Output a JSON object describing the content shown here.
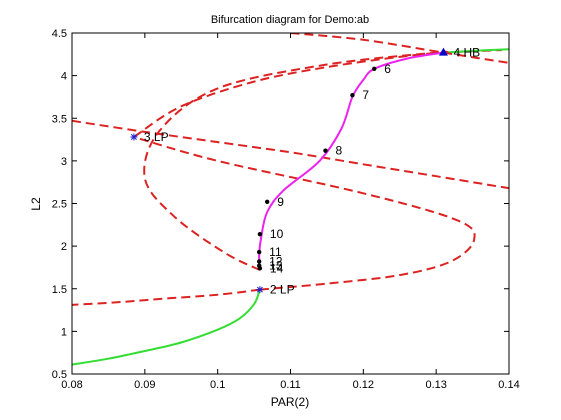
{
  "chart_data": {
    "type": "line",
    "title": "Bifurcation diagram for Demo:ab",
    "xlabel": "PAR(2)",
    "ylabel": "L2",
    "xlim": [
      0.08,
      0.14
    ],
    "ylim": [
      0.5,
      4.5
    ],
    "xticks": [
      "0.08",
      "0.09",
      "0.1",
      "0.11",
      "0.12",
      "0.13",
      "0.14"
    ],
    "yticks": [
      "0.5",
      "1",
      "1.5",
      "2",
      "2.5",
      "3",
      "3.5",
      "4",
      "4.5"
    ],
    "grid": false,
    "legend": "none",
    "colors": {
      "stable": "#33dd33",
      "unstable": "#dd2222",
      "periodic": "#ee22ee",
      "hb": "#0000cc",
      "lp": "#2222cc",
      "dot": "#000000"
    },
    "series": [
      {
        "style": "stable",
        "x": [
          0.08,
          0.085,
          0.09,
          0.095,
          0.1,
          0.103,
          0.105,
          0.1058
        ],
        "y": [
          0.61,
          0.68,
          0.77,
          0.87,
          1.02,
          1.15,
          1.32,
          1.49
        ]
      },
      {
        "style": "unstable",
        "x": [
          0.1058,
          0.115,
          0.125,
          0.132,
          0.1352,
          0.133,
          0.12,
          0.1,
          0.0885
        ],
        "y": [
          1.49,
          1.56,
          1.66,
          1.82,
          2.07,
          2.3,
          2.62,
          3.0,
          3.28
        ]
      },
      {
        "style": "unstable",
        "x": [
          0.0885,
          0.095,
          0.105,
          0.115,
          0.125,
          0.131,
          0.139
        ],
        "y": [
          3.28,
          3.64,
          3.93,
          4.1,
          4.22,
          4.27,
          4.3
        ]
      },
      {
        "style": "stable",
        "x": [
          0.131,
          0.135,
          0.14
        ],
        "y": [
          4.27,
          4.29,
          4.31
        ]
      },
      {
        "style": "unstable",
        "x": [
          0.1058,
          0.1,
          0.092,
          0.086,
          0.08
        ],
        "y": [
          1.49,
          1.43,
          1.38,
          1.34,
          1.31
        ]
      },
      {
        "style": "unstable",
        "x": [
          0.1058,
          0.101,
          0.094,
          0.09,
          0.092,
          0.1,
          0.115,
          0.13,
          0.131
        ],
        "y": [
          1.72,
          1.92,
          2.35,
          2.8,
          3.35,
          3.85,
          4.13,
          4.27,
          4.27
        ]
      },
      {
        "style": "unstable",
        "x": [
          0.08,
          0.09,
          0.1,
          0.11,
          0.12,
          0.13,
          0.14
        ],
        "y": [
          3.47,
          3.34,
          3.22,
          3.1,
          2.96,
          2.82,
          2.68
        ]
      },
      {
        "style": "unstable",
        "x": [
          0.11,
          0.12,
          0.131,
          0.14,
          0.145
        ],
        "y": [
          4.5,
          4.42,
          4.27,
          4.15,
          4.1
        ]
      },
      {
        "style": "periodic",
        "x": [
          0.1058,
          0.1057,
          0.106,
          0.1068,
          0.109,
          0.114,
          0.117,
          0.1185,
          0.12,
          0.1215,
          0.126,
          0.131
        ],
        "y": [
          1.73,
          1.9,
          2.12,
          2.4,
          2.65,
          3.0,
          3.38,
          3.75,
          3.95,
          4.08,
          4.2,
          4.27
        ]
      }
    ],
    "points": [
      {
        "label": "2  LP",
        "x": 0.1058,
        "y": 1.49,
        "marker": "star"
      },
      {
        "label": "3  LP",
        "x": 0.0885,
        "y": 3.28,
        "marker": "star"
      },
      {
        "label": "4  HB",
        "x": 0.131,
        "y": 4.27,
        "marker": "triangle"
      },
      {
        "label": "6",
        "x": 0.1215,
        "y": 4.08,
        "marker": "dot"
      },
      {
        "label": "7",
        "x": 0.1185,
        "y": 3.77,
        "marker": "dot"
      },
      {
        "label": "8",
        "x": 0.1148,
        "y": 3.12,
        "marker": "dot"
      },
      {
        "label": "9",
        "x": 0.1068,
        "y": 2.52,
        "marker": "dot"
      },
      {
        "label": "10",
        "x": 0.1058,
        "y": 2.14,
        "marker": "dot"
      },
      {
        "label": "11",
        "x": 0.1057,
        "y": 1.93,
        "marker": "dot"
      },
      {
        "label": "12",
        "x": 0.1057,
        "y": 1.82,
        "marker": "dot"
      },
      {
        "label": "13",
        "x": 0.1057,
        "y": 1.77,
        "marker": "dot"
      },
      {
        "label": "14",
        "x": 0.1058,
        "y": 1.74,
        "marker": "dot"
      }
    ]
  }
}
